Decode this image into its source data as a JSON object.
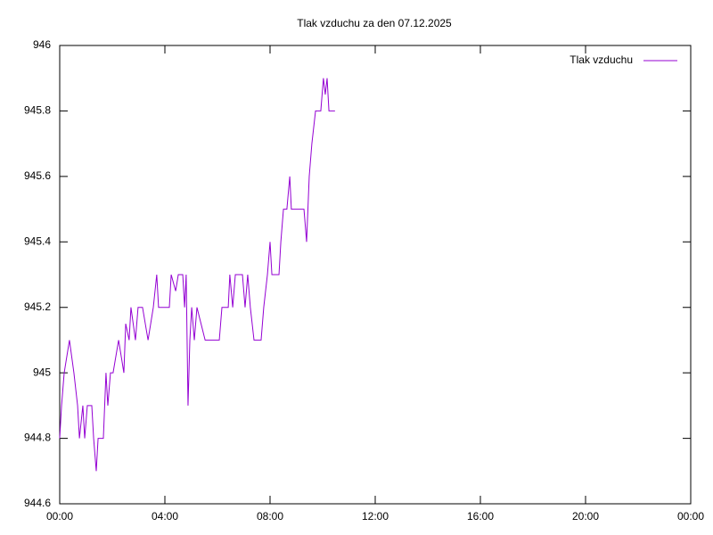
{
  "chart_data": {
    "type": "line",
    "title": "Tlak vzduchu za den 07.12.2025",
    "x": [
      0.0,
      0.07,
      0.17,
      0.37,
      0.54,
      0.68,
      0.75,
      0.88,
      0.95,
      1.05,
      1.22,
      1.29,
      1.39,
      1.46,
      1.66,
      1.76,
      1.83,
      1.93,
      2.03,
      2.24,
      2.44,
      2.51,
      2.64,
      2.71,
      2.88,
      2.98,
      3.15,
      3.36,
      3.56,
      3.69,
      3.76,
      4.17,
      4.24,
      4.41,
      4.51,
      4.68,
      4.75,
      4.81,
      4.88,
      4.95,
      5.02,
      5.12,
      5.22,
      5.53,
      6.07,
      6.17,
      6.41,
      6.47,
      6.58,
      6.68,
      6.95,
      7.05,
      7.15,
      7.25,
      7.39,
      7.66,
      7.76,
      7.9,
      8.0,
      8.07,
      8.34,
      8.41,
      8.51,
      8.64,
      8.75,
      8.81,
      9.08,
      9.29,
      9.39,
      9.49,
      9.59,
      9.73,
      9.93,
      10.03,
      10.1,
      10.17,
      10.24,
      10.47
    ],
    "series": [
      {
        "name": "Tlak vzduchu",
        "color": "#9400d3",
        "values": [
          944.8,
          944.9,
          945.0,
          945.1,
          945.0,
          944.9,
          944.8,
          944.9,
          944.8,
          944.9,
          944.9,
          944.8,
          944.7,
          944.8,
          944.8,
          945.0,
          944.9,
          945.0,
          945.0,
          945.1,
          945.0,
          945.15,
          945.1,
          945.2,
          945.1,
          945.2,
          945.2,
          945.1,
          945.2,
          945.3,
          945.2,
          945.2,
          945.3,
          945.25,
          945.3,
          945.3,
          945.2,
          945.3,
          944.9,
          945.1,
          945.2,
          945.1,
          945.2,
          945.1,
          945.1,
          945.2,
          945.2,
          945.3,
          945.2,
          945.3,
          945.3,
          945.2,
          945.3,
          945.2,
          945.1,
          945.1,
          945.2,
          945.3,
          945.4,
          945.3,
          945.3,
          945.4,
          945.5,
          945.5,
          945.6,
          945.5,
          945.5,
          945.5,
          945.4,
          945.6,
          945.7,
          945.8,
          945.8,
          945.9,
          945.85,
          945.9,
          945.8,
          945.8
        ]
      }
    ],
    "xlim": [
      0,
      24
    ],
    "xticks": [
      {
        "value": 0,
        "label": "00:00"
      },
      {
        "value": 4,
        "label": "04:00"
      },
      {
        "value": 8,
        "label": "08:00"
      },
      {
        "value": 12,
        "label": "12:00"
      },
      {
        "value": 16,
        "label": "16:00"
      },
      {
        "value": 20,
        "label": "20:00"
      },
      {
        "value": 24,
        "label": "00:00"
      }
    ],
    "ylim": [
      944.6,
      946
    ],
    "yticks": [
      944.6,
      944.8,
      945,
      945.2,
      945.4,
      945.6,
      945.8,
      946
    ],
    "grid": false,
    "legend": "top-right"
  }
}
